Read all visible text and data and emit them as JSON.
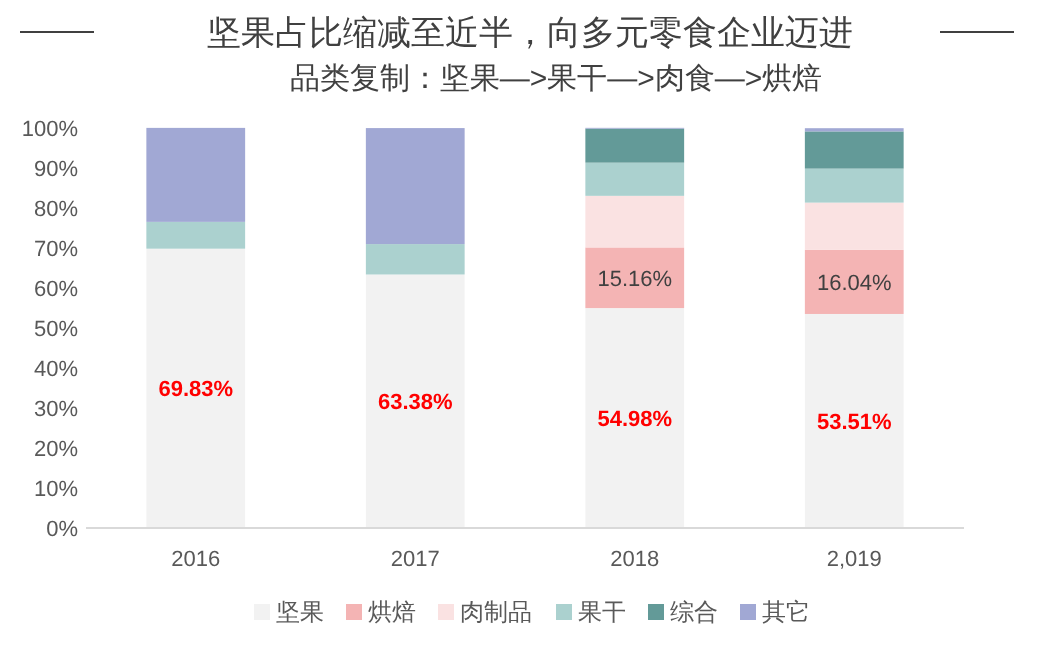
{
  "chart_data": {
    "type": "bar",
    "stacked": true,
    "title": "坚果占比缩减至近半，向多元零食企业迈进",
    "subtitle": "品类复制：坚果—>果干—>肉食—>烘焙",
    "categories": [
      "2016",
      "2017",
      "2018",
      "2,019"
    ],
    "series": [
      {
        "name": "坚果",
        "color": "#f2f2f2",
        "values": [
          69.83,
          63.38,
          54.98,
          53.51
        ],
        "value_labels": [
          "69.83%",
          "63.38%",
          "54.98%",
          "53.51%"
        ]
      },
      {
        "name": "烘焙",
        "color": "#f4b4b4",
        "values": [
          0,
          0,
          15.16,
          16.04
        ],
        "value_labels": [
          null,
          null,
          "15.16%",
          "16.04%"
        ]
      },
      {
        "name": "肉制品",
        "color": "#fae2e2",
        "values": [
          0,
          0,
          12.9,
          11.8
        ]
      },
      {
        "name": "果干",
        "color": "#abd1cf",
        "values": [
          6.7,
          7.6,
          8.3,
          8.5
        ]
      },
      {
        "name": "综合",
        "color": "#639a98",
        "values": [
          0,
          0,
          8.5,
          9.3
        ]
      },
      {
        "name": "其它",
        "color": "#a1a8d4",
        "values": [
          23.5,
          29.0,
          0.2,
          0.8
        ]
      }
    ],
    "ylim": [
      0,
      100
    ],
    "yticks": [
      {
        "value": 0,
        "label": "0%"
      },
      {
        "value": 10,
        "label": "10%"
      },
      {
        "value": 20,
        "label": "20%"
      },
      {
        "value": 30,
        "label": "30%"
      },
      {
        "value": 40,
        "label": "40%"
      },
      {
        "value": 50,
        "label": "50%"
      },
      {
        "value": 60,
        "label": "60%"
      },
      {
        "value": 70,
        "label": "70%"
      },
      {
        "value": 80,
        "label": "80%"
      },
      {
        "value": 90,
        "label": "90%"
      },
      {
        "value": 100,
        "label": "100%"
      }
    ],
    "legend": "bottom",
    "grid": false
  }
}
